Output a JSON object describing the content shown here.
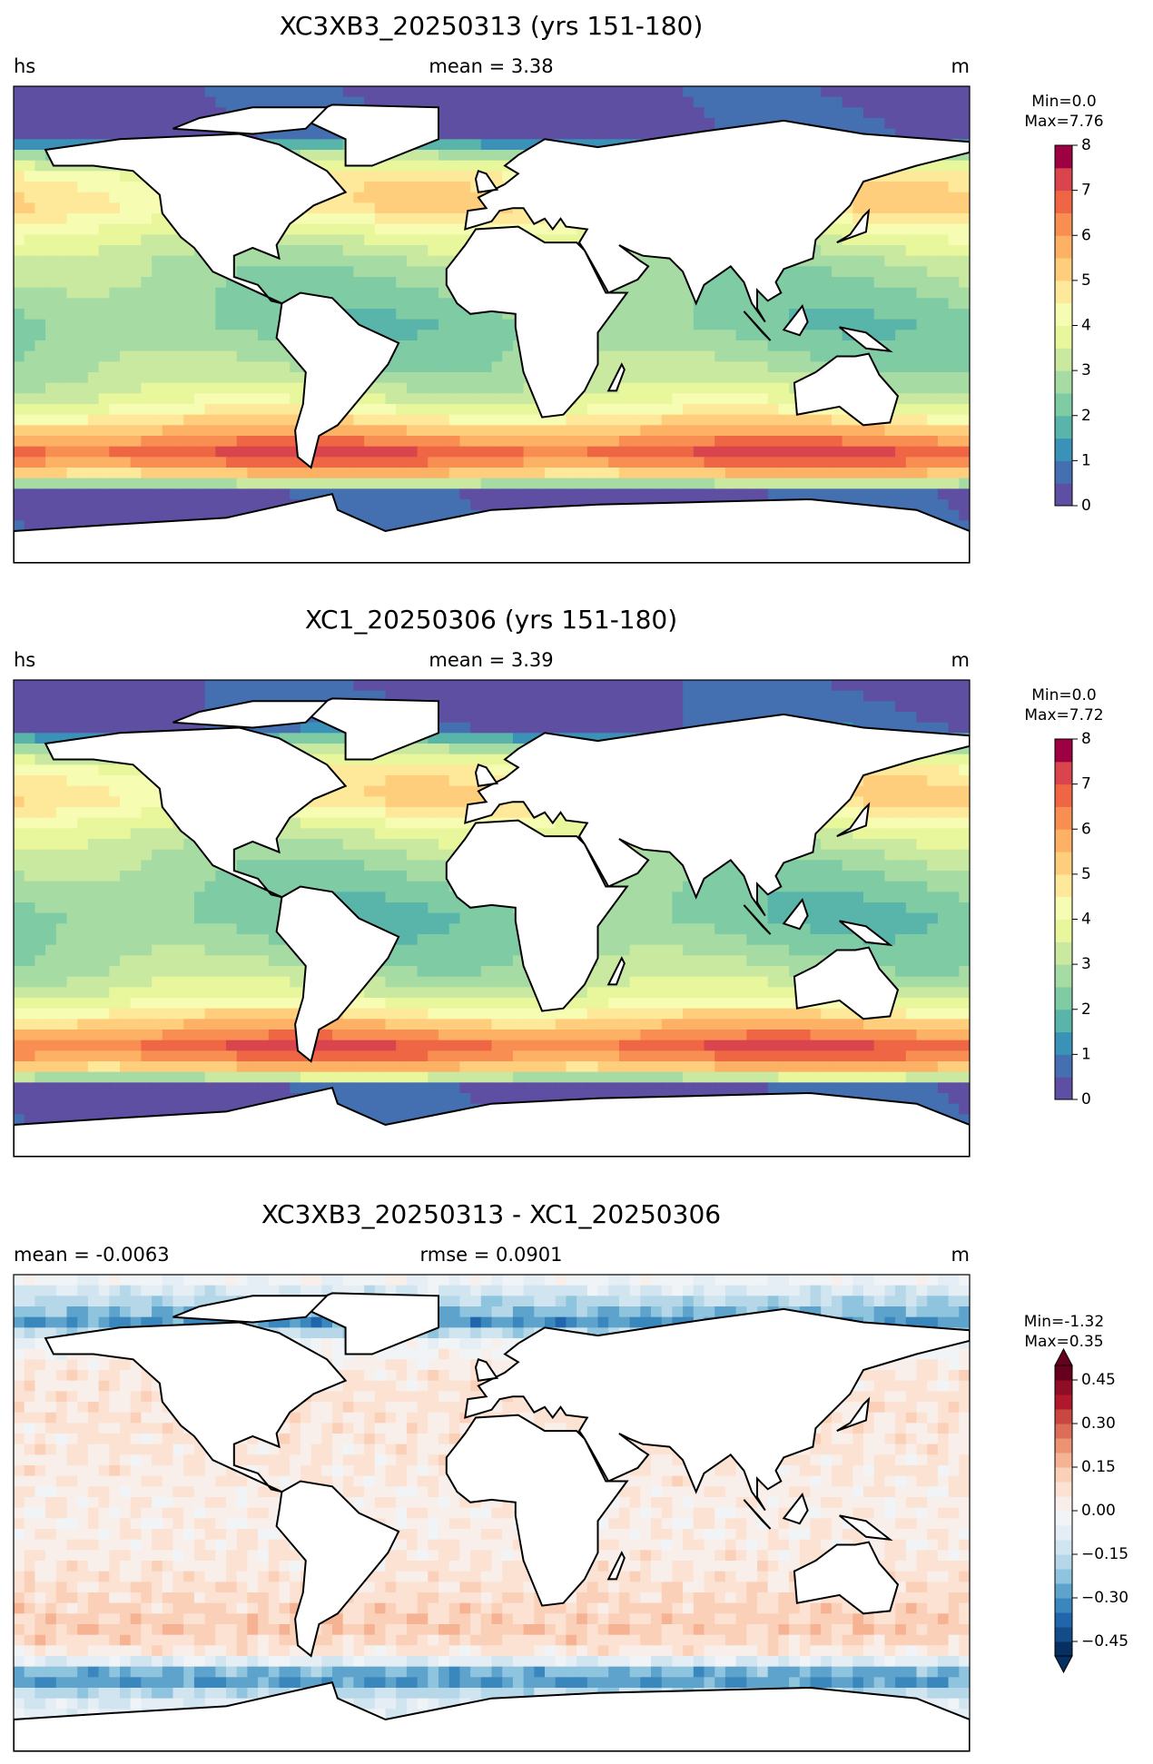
{
  "panels": [
    {
      "title": "XC3XB3_20250313 (yrs 151-180)",
      "left_label": "hs",
      "center_label": "mean = 3.38",
      "right_label": "m",
      "colorbar": {
        "min_label": "Min=0.0",
        "max_label": "Max=7.76",
        "lim": [
          0,
          8
        ],
        "ticks": [
          0,
          1,
          2,
          3,
          4,
          5,
          6,
          7,
          8
        ],
        "colors": [
          "#5e4fa2",
          "#4470b1",
          "#3b92b8",
          "#59b4aa",
          "#7ecba4",
          "#a6dba4",
          "#cae9a0",
          "#e8f69c",
          "#f7fcb3",
          "#fee89a",
          "#fece7c",
          "#fdb164",
          "#f98e52",
          "#ef6645",
          "#d9444d",
          "#9e0142"
        ]
      }
    },
    {
      "title": "XC1_20250306 (yrs 151-180)",
      "left_label": "hs",
      "center_label": "mean = 3.39",
      "right_label": "m",
      "colorbar": {
        "min_label": "Min=0.0",
        "max_label": "Max=7.72",
        "lim": [
          0,
          8
        ],
        "ticks": [
          0,
          1,
          2,
          3,
          4,
          5,
          6,
          7,
          8
        ],
        "colors": [
          "#5e4fa2",
          "#4470b1",
          "#3b92b8",
          "#59b4aa",
          "#7ecba4",
          "#a6dba4",
          "#cae9a0",
          "#e8f69c",
          "#f7fcb3",
          "#fee89a",
          "#fece7c",
          "#fdb164",
          "#f98e52",
          "#ef6645",
          "#d9444d",
          "#9e0142"
        ]
      }
    },
    {
      "title": "XC3XB3_20250313 - XC1_20250306",
      "left_label": "mean = -0.0063",
      "center_label": "rmse = 0.0901",
      "right_label": "m",
      "colorbar": {
        "min_label": "Min=-1.32",
        "max_label": "Max=0.35",
        "lim": [
          -0.5,
          0.5
        ],
        "ticks": [
          {
            "value": -0.45,
            "label": "−0.45"
          },
          {
            "value": -0.3,
            "label": "−0.30"
          },
          {
            "value": -0.15,
            "label": "−0.15"
          },
          {
            "value": 0,
            "label": "0.00"
          },
          0.15,
          {
            "value": 0.3,
            "label": "0.30"
          },
          0.45
        ],
        "colors": [
          "#053061",
          "#134c87",
          "#2166ac",
          "#3a87bd",
          "#5ea3cc",
          "#8ec4de",
          "#b5d7e8",
          "#d1e5f0",
          "#e4eef4",
          "#f1f4f6",
          "#f9efea",
          "#fce2d3",
          "#fbd0b9",
          "#f6b394",
          "#ec9373",
          "#dc6e57",
          "#c94741",
          "#b2182b",
          "#8f0d25",
          "#67001f"
        ],
        "extend": true
      }
    }
  ]
}
